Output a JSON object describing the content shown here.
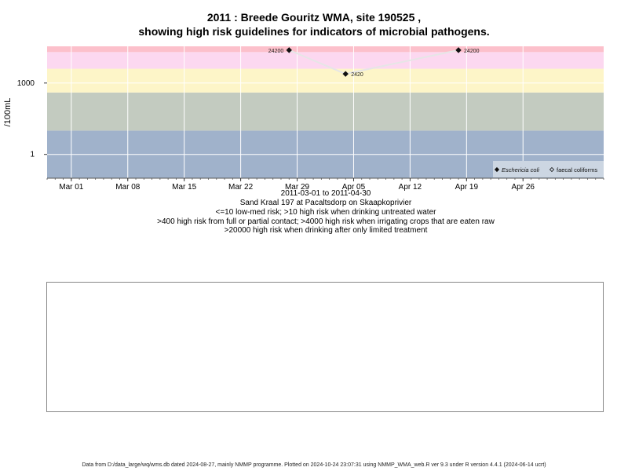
{
  "title_line1": "2011 : Breede Gouritz WMA, site 190525 ,",
  "title_line2": "showing high risk guidelines for indicators of microbial pathogens.",
  "notes": {
    "date_range": "2011-03-01 to 2011-04-30",
    "site_name": "Sand Kraal 197 at Pacaltsdorp on Skaapkoprivier",
    "risk_line1": "<=10 low-med risk; >10 high risk when drinking untreated water",
    "risk_line2": ">400 high risk from full or partial contact; >4000 high risk when irrigating crops that are eaten raw",
    "risk_line3": ">20000 high risk when drinking after only limited treatment"
  },
  "footer": "Data from D:/data_large/wq/wms.db dated 2024-08-27, mainly NMMP programme. Plotted on 2024-10-24 23:07:31 using NMMP_WMA_web.R ver 9.3 under R version 4.4.1 (2024-06-14 ucrt)",
  "colors": {
    "band_pink": "#fcc0cb",
    "band_lightpink": "#fcd8f0",
    "band_yellow": "#fdf5c8",
    "band_green": "#c3cbc0",
    "band_blue": "#a0b2cb",
    "series_line": "#e6e6e6"
  },
  "chart_data": {
    "type": "scatter",
    "title": "2011 : Breede Gouritz WMA, site 190525 ,",
    "ylabel": "/100mL",
    "yscale": "log10",
    "ylim": [
      0.1,
      35000
    ],
    "yticks": [
      {
        "value": 1,
        "label": "1"
      },
      {
        "value": 1000,
        "label": "1000"
      }
    ],
    "xlim": [
      "2011-02-26",
      "2011-05-06"
    ],
    "xticks": [
      "Mar 01",
      "Mar 08",
      "Mar 15",
      "Mar 22",
      "Mar 29",
      "Apr 05",
      "Apr 12",
      "Apr 19",
      "Apr 26"
    ],
    "xtick_dates": [
      "2011-03-01",
      "2011-03-08",
      "2011-03-15",
      "2011-03-22",
      "2011-03-29",
      "2011-04-05",
      "2011-04-12",
      "2011-04-19",
      "2011-04-26"
    ],
    "risk_bands": [
      {
        "from": 0.1,
        "to": 10,
        "color_key": "band_blue"
      },
      {
        "from": 10,
        "to": 400,
        "color_key": "band_green"
      },
      {
        "from": 400,
        "to": 4000,
        "color_key": "band_yellow"
      },
      {
        "from": 4000,
        "to": 20000,
        "color_key": "band_lightpink"
      },
      {
        "from": 20000,
        "to": 35000,
        "color_key": "band_pink"
      }
    ],
    "series": [
      {
        "name": "Eschericia coli",
        "marker": "filled-diamond",
        "points": [
          {
            "x": "2011-03-28",
            "y": 24200,
            "label": "24200"
          },
          {
            "x": "2011-04-04",
            "y": 2420,
            "label": "2420"
          },
          {
            "x": "2011-04-18",
            "y": 24200,
            "label": "24200"
          }
        ]
      },
      {
        "name": "faecal coliforms",
        "marker": "open-diamond",
        "points": []
      }
    ],
    "grid": true,
    "legend_position": "bottom-right"
  }
}
